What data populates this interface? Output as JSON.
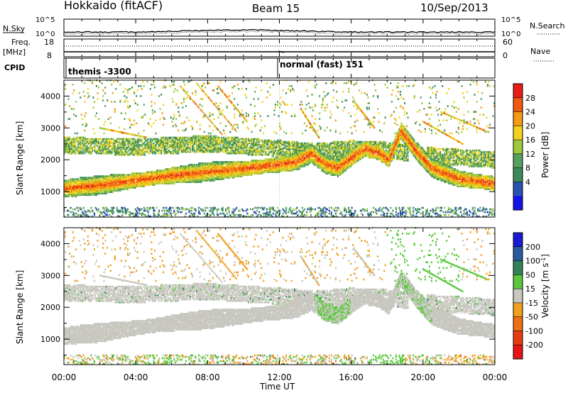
{
  "header": {
    "site": "Hokkaido (fitACF)",
    "beam": "Beam 15",
    "date": "10/Sep/2013"
  },
  "top_panels": {
    "nsky_label": "N.Sky",
    "nsky_ticks": [
      "10^5",
      "10^0"
    ],
    "nsearch_label": "N.Search",
    "nsearch_ticks": [
      "10^5",
      "10^0"
    ],
    "freq_label_1": "Freq.",
    "freq_label_2": "[MHz]",
    "freq_ticks": [
      "18",
      "8"
    ],
    "nave_label": "Nave",
    "nave_ticks": [
      "60",
      "0"
    ],
    "cpid_label": "CPID",
    "cpid_mode_1": "themis -3300",
    "cpid_mode_2": "normal (fast) 151"
  },
  "colors": {
    "power": [
      "#1414e6",
      "#2a52b0",
      "#3a8a5a",
      "#55a060",
      "#a0c83c",
      "#f2d21e",
      "#f59a14",
      "#ee5a10",
      "#e61e14"
    ],
    "velocity": [
      "#1a1ad2",
      "#2a5aa0",
      "#32825a",
      "#5ac83c",
      "#c8c8c0",
      "#f0a01e",
      "#ee6e14",
      "#e63c14",
      "#e61414"
    ]
  },
  "chart_data": [
    {
      "type": "heatmap",
      "title": "",
      "quantity": "Power",
      "ylabel": "Slant Range [km]",
      "xlabel": "",
      "y_ticks": [
        1000,
        2000,
        3000,
        4000
      ],
      "ylim": [
        200,
        4500
      ],
      "x_ticks": [
        "00:00",
        "04:00",
        "08:00",
        "12:00",
        "16:00",
        "20:00",
        "00:00"
      ],
      "x_hours": [
        0,
        4,
        8,
        12,
        16,
        20,
        24
      ],
      "colorbar_label": "Power [dB]",
      "colorbar_ticks": [
        "28",
        "24",
        "20",
        "16",
        "12",
        "8",
        "4"
      ],
      "colorbar_range": [
        0,
        30
      ]
    },
    {
      "type": "heatmap",
      "title": "",
      "quantity": "Velocity",
      "ylabel": "Slant Range [km]",
      "xlabel": "Time UT",
      "y_ticks": [
        1000,
        2000,
        3000,
        4000
      ],
      "ylim": [
        200,
        4500
      ],
      "x_ticks": [
        "00:00",
        "04:00",
        "08:00",
        "12:00",
        "16:00",
        "20:00",
        "00:00"
      ],
      "x_hours": [
        0,
        4,
        8,
        12,
        16,
        20,
        24
      ],
      "colorbar_label": "Velocity [m s",
      "colorbar_label_sup": "-1",
      "colorbar_label_end": "]",
      "colorbar_ticks": [
        "200",
        "100",
        "50",
        "15",
        "-15",
        "-50",
        "-100",
        "-200"
      ],
      "colorbar_range": [
        -250,
        250
      ]
    }
  ]
}
